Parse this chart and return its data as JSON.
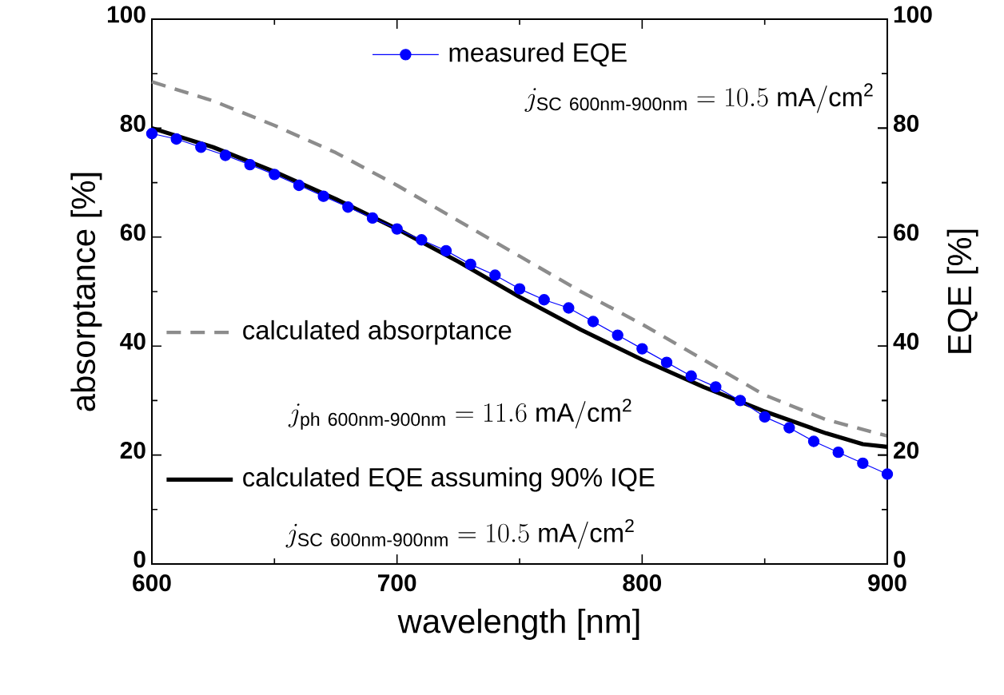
{
  "chart_data": {
    "type": "line",
    "xlabel": "wavelength [nm]",
    "ylabel": "absorptance [%]",
    "y2label": "EQE [%]",
    "xlim": [
      600,
      900
    ],
    "xticks": [
      600,
      700,
      800,
      900
    ],
    "ylim": [
      0,
      100
    ],
    "yticks": [
      0,
      20,
      40,
      60,
      80,
      100
    ],
    "y2lim": [
      0,
      100
    ],
    "y2ticks": [
      0,
      20,
      40,
      60,
      80,
      100
    ],
    "legend": "top",
    "series": [
      {
        "name": "measured EQE",
        "color": "#0000ff",
        "axis": "y2",
        "marker": "circle",
        "line_style": "solid",
        "x": [
          600,
          610,
          620,
          630,
          640,
          650,
          660,
          670,
          680,
          690,
          700,
          710,
          720,
          730,
          740,
          750,
          760,
          770,
          780,
          790,
          800,
          810,
          820,
          830,
          840,
          850,
          860,
          870,
          880,
          890,
          900
        ],
        "values": [
          79,
          78,
          76.5,
          75,
          73.3,
          71.5,
          69.5,
          67.5,
          65.5,
          63.5,
          61.5,
          59.5,
          57.5,
          55,
          53,
          50.5,
          48.5,
          47,
          44.5,
          42,
          39.5,
          37,
          34.5,
          32.5,
          30,
          27,
          25,
          22.5,
          20.5,
          18.5,
          16.5
        ]
      },
      {
        "name": "calculated absorptance",
        "color": "#8c8c8c",
        "marker": "none",
        "line_style": "dashed",
        "x": [
          600,
          625,
          650,
          675,
          700,
          725,
          750,
          775,
          800,
          825,
          850,
          875,
          900
        ],
        "values": [
          88.5,
          85,
          80.5,
          75.5,
          69.5,
          63,
          56.5,
          50,
          44,
          37.5,
          31,
          26.5,
          23.5
        ]
      },
      {
        "name": "calculated EQE assuming 90% IQE",
        "color": "#000000",
        "marker": "none",
        "line_style": "solid",
        "x": [
          600,
          625,
          650,
          675,
          700,
          725,
          750,
          775,
          800,
          825,
          850,
          875,
          890,
          900
        ],
        "values": [
          80,
          76.5,
          72,
          67,
          61.5,
          55.5,
          49,
          43,
          37.5,
          32.5,
          28,
          24,
          22,
          21.5
        ]
      }
    ],
    "annotations": [
      "j_{\\mathrm{SC\\ 600nm\\text{-}900nm}} = 10.5\\ \\mathrm{mA/cm^{2}}",
      "j_{\\mathrm{ph\\ 600nm\\text{-}900nm}} = 11.6\\ \\mathrm{mA/cm^{2}}",
      "j_{\\mathrm{SC\\ 600nm\\text{-}900nm}} = 10.5\\ \\mathrm{mA/cm^{2}}"
    ]
  }
}
